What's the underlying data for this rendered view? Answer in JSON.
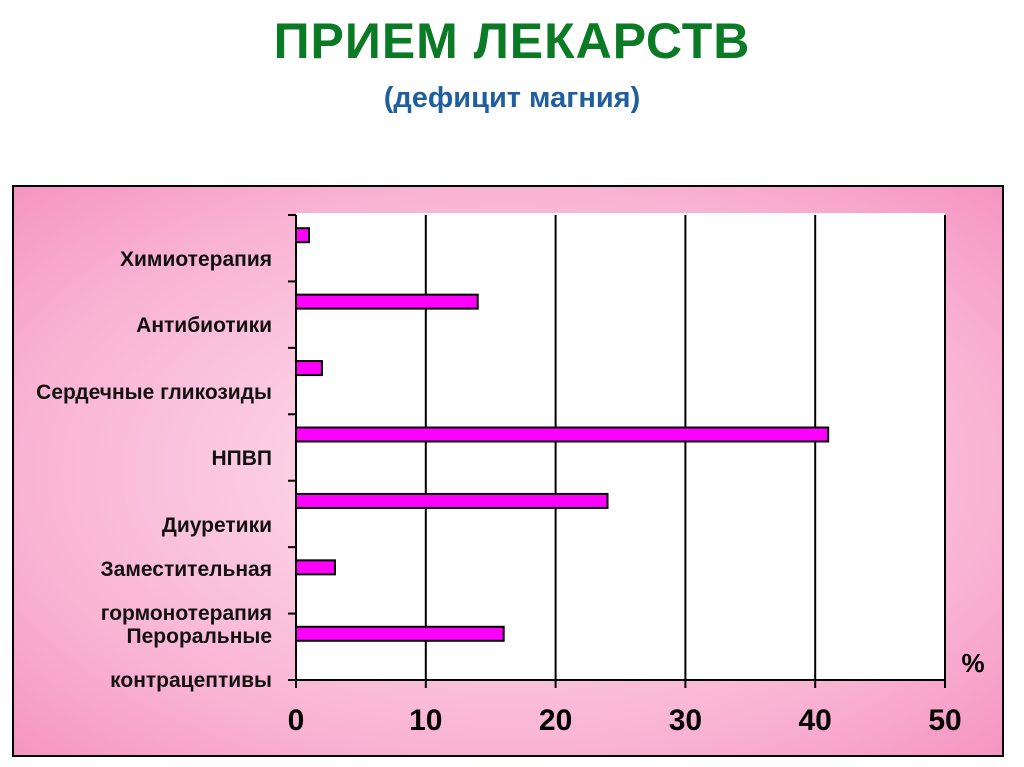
{
  "chart_data": {
    "type": "bar",
    "orientation": "horizontal",
    "title": "ПРИЕМ ЛЕКАРСТВ",
    "subtitle": "(дефицит магния)",
    "x_label": "%",
    "categories": [
      "Химиотерапия",
      "Антибиотики",
      "Сердечные гликозиды",
      "НПВП",
      "Диуретики",
      "Заместительная гормонотерапия",
      "Пероральные контрацептивы"
    ],
    "values": [
      1,
      14,
      2,
      41,
      24,
      3,
      16
    ],
    "color": "#ff00ff",
    "xlim": [
      0,
      50
    ],
    "xticks": [
      0,
      10,
      20,
      30,
      40,
      50
    ],
    "grid": true
  }
}
